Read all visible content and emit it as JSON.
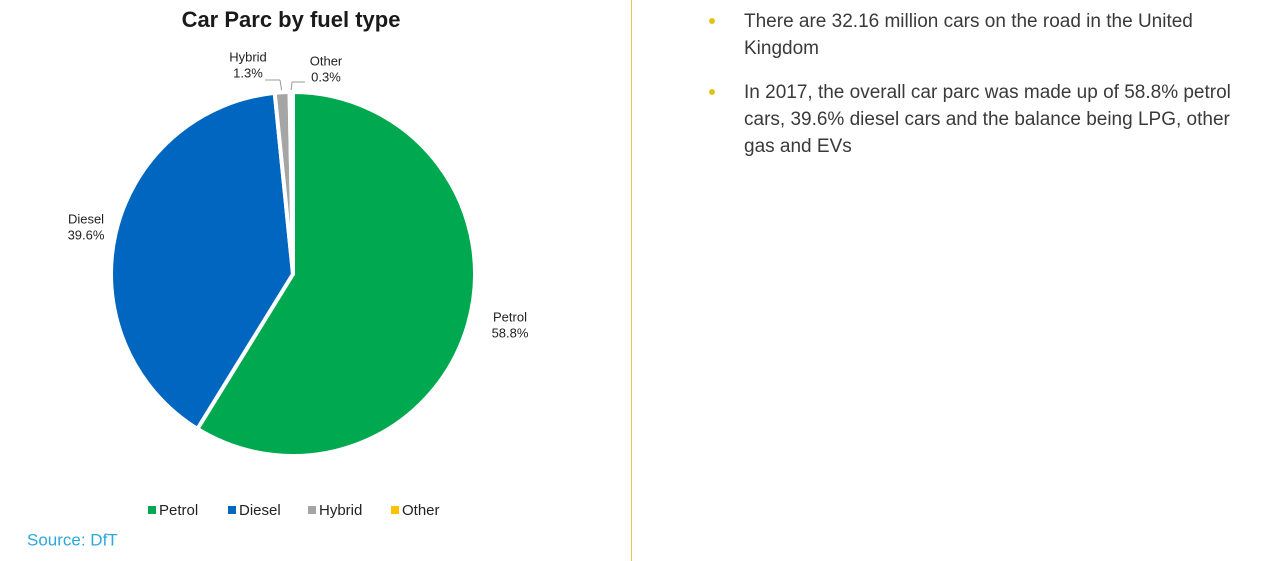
{
  "chart_data": {
    "type": "pie",
    "title": "Car Parc by fuel type",
    "categories": [
      "Petrol",
      "Diesel",
      "Hybrid",
      "Other"
    ],
    "values": [
      58.8,
      39.6,
      1.3,
      0.3
    ],
    "value_labels": [
      "58.8%",
      "39.6%",
      "1.3%",
      "0.3%"
    ],
    "colors": [
      "#00a84f",
      "#0066bf",
      "#a5a5a5",
      "#ffc000"
    ],
    "legend": "bottom",
    "source": "Source: DfT"
  },
  "bullets": [
    "There are 32.16 million cars on the road in the United Kingdom",
    "In 2017, the overall car parc was made up of 58.8% petrol cars, 39.6% diesel cars and the balance being LPG, other gas and EVs"
  ]
}
